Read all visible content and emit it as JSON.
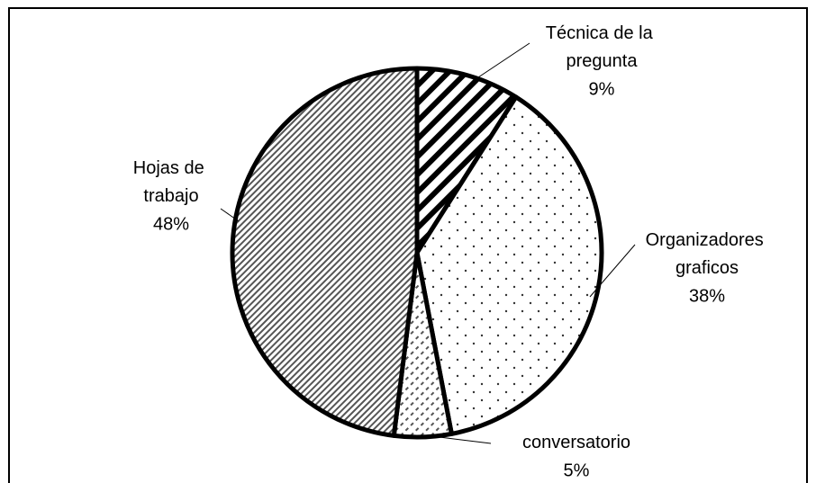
{
  "chart_data": {
    "type": "pie",
    "categories": [
      "Técnica de la pregunta",
      "Organizadores graficos",
      "conversatorio",
      "Hojas de trabajo"
    ],
    "values": [
      9,
      38,
      5,
      48
    ],
    "value_labels": [
      "9%",
      "38%",
      "5%",
      "48%"
    ]
  }
}
